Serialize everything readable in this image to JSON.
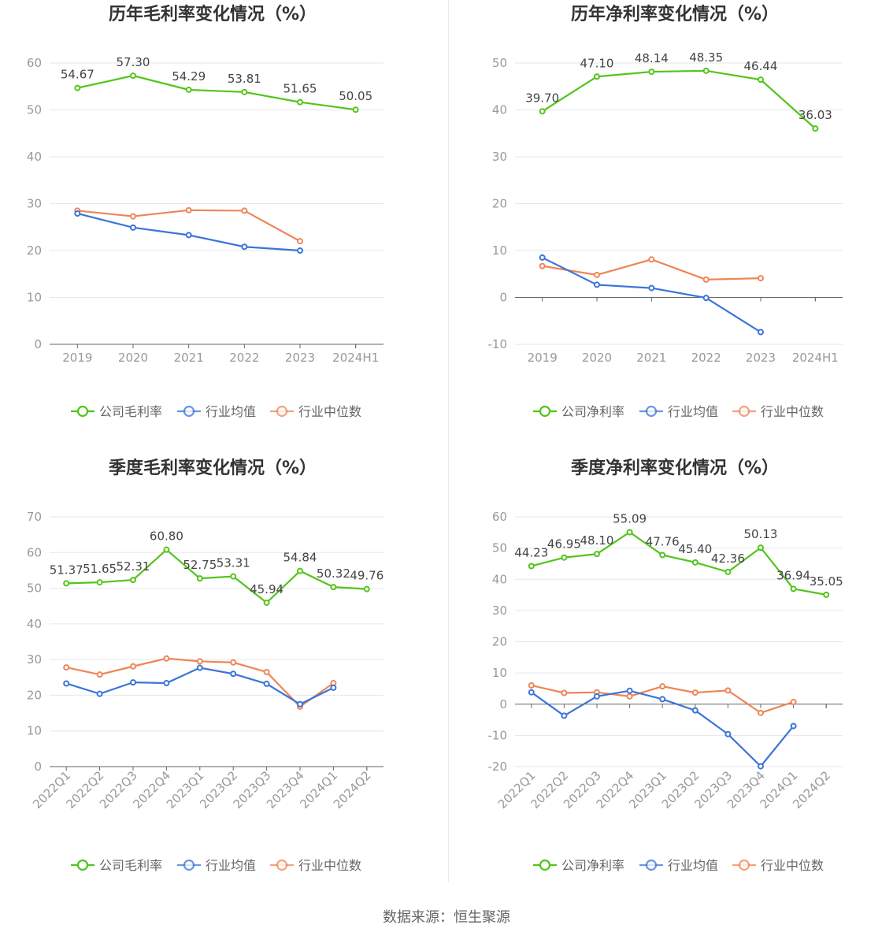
{
  "source_label": "数据来源：恒生聚源",
  "colors": {
    "company": "#52c41a",
    "avg": "#3b74d9",
    "median": "#ee8556",
    "grid": "#e6e6ee",
    "axis": "#666666"
  },
  "chart_data": [
    {
      "type": "line",
      "title": "历年毛利率变化情况（%）",
      "categories": [
        "2019",
        "2020",
        "2021",
        "2022",
        "2023",
        "2024H1"
      ],
      "ylim": [
        0,
        60
      ],
      "yticks": [
        0,
        10,
        20,
        30,
        40,
        50,
        60
      ],
      "grid": true,
      "legend_position": "bottom",
      "rotate_x_labels": false,
      "series": [
        {
          "name": "公司毛利率",
          "key": "company",
          "labels": true,
          "values": [
            54.67,
            57.3,
            54.29,
            53.81,
            51.65,
            50.05
          ]
        },
        {
          "name": "行业均值",
          "key": "avg",
          "labels": false,
          "values": [
            27.9,
            24.9,
            23.3,
            20.8,
            20.0,
            null
          ]
        },
        {
          "name": "行业中位数",
          "key": "median",
          "labels": false,
          "values": [
            28.5,
            27.3,
            28.6,
            28.5,
            22.0,
            null
          ]
        }
      ],
      "label_text": [
        "54.67",
        "57.30",
        "54.29",
        "53.81",
        "51.65",
        "50.05"
      ]
    },
    {
      "type": "line",
      "title": "历年净利率变化情况（%）",
      "categories": [
        "2019",
        "2020",
        "2021",
        "2022",
        "2023",
        "2024H1"
      ],
      "ylim": [
        -10,
        50
      ],
      "yticks": [
        -10,
        0,
        10,
        20,
        30,
        40,
        50
      ],
      "grid": true,
      "legend_position": "bottom",
      "rotate_x_labels": false,
      "series": [
        {
          "name": "公司净利率",
          "key": "company",
          "labels": true,
          "values": [
            39.7,
            47.1,
            48.14,
            48.35,
            46.44,
            36.03
          ]
        },
        {
          "name": "行业均值",
          "key": "avg",
          "labels": false,
          "values": [
            8.5,
            2.7,
            2.0,
            -0.1,
            -7.4,
            null
          ]
        },
        {
          "name": "行业中位数",
          "key": "median",
          "labels": false,
          "values": [
            6.7,
            4.8,
            8.1,
            3.8,
            4.1,
            null
          ]
        }
      ],
      "label_text": [
        "39.70",
        "47.10",
        "48.14",
        "48.35",
        "46.44",
        "36.03"
      ]
    },
    {
      "type": "line",
      "title": "季度毛利率变化情况（%）",
      "categories": [
        "2022Q1",
        "2022Q2",
        "2022Q3",
        "2022Q4",
        "2023Q1",
        "2023Q2",
        "2023Q3",
        "2023Q4",
        "2024Q1",
        "2024Q2"
      ],
      "ylim": [
        0,
        70
      ],
      "yticks": [
        0,
        10,
        20,
        30,
        40,
        50,
        60,
        70
      ],
      "grid": true,
      "legend_position": "bottom",
      "rotate_x_labels": true,
      "series": [
        {
          "name": "公司毛利率",
          "key": "company",
          "labels": true,
          "values": [
            51.37,
            51.65,
            52.31,
            60.8,
            52.75,
            53.31,
            45.94,
            54.84,
            50.32,
            49.76
          ]
        },
        {
          "name": "行业均值",
          "key": "avg",
          "labels": false,
          "values": [
            23.3,
            20.4,
            23.6,
            23.4,
            27.7,
            26.0,
            23.2,
            17.5,
            22.1,
            null
          ]
        },
        {
          "name": "行业中位数",
          "key": "median",
          "labels": false,
          "values": [
            27.8,
            25.8,
            28.1,
            30.3,
            29.5,
            29.2,
            26.5,
            16.8,
            23.4,
            null
          ]
        }
      ],
      "label_text": [
        "51.37",
        "51.65",
        "52.31",
        "60.80",
        "52.75",
        "53.31",
        "45.94",
        "54.84",
        "50.32",
        "49.76"
      ]
    },
    {
      "type": "line",
      "title": "季度净利率变化情况（%）",
      "categories": [
        "2022Q1",
        "2022Q2",
        "2022Q3",
        "2022Q4",
        "2023Q1",
        "2023Q2",
        "2023Q3",
        "2023Q4",
        "2024Q1",
        "2024Q2"
      ],
      "ylim": [
        -20,
        60
      ],
      "yticks": [
        -20,
        -10,
        0,
        10,
        20,
        30,
        40,
        50,
        60
      ],
      "grid": true,
      "legend_position": "bottom",
      "rotate_x_labels": true,
      "series": [
        {
          "name": "公司净利率",
          "key": "company",
          "labels": true,
          "values": [
            44.23,
            46.95,
            48.1,
            55.09,
            47.76,
            45.4,
            42.36,
            50.13,
            36.94,
            35.05
          ]
        },
        {
          "name": "行业均值",
          "key": "avg",
          "labels": false,
          "values": [
            3.8,
            -3.7,
            2.5,
            4.3,
            1.6,
            -2.0,
            -9.6,
            -19.9,
            -7.0,
            null
          ]
        },
        {
          "name": "行业中位数",
          "key": "median",
          "labels": false,
          "values": [
            6.0,
            3.6,
            3.8,
            2.5,
            5.7,
            3.7,
            4.4,
            -2.8,
            0.7,
            null
          ]
        }
      ],
      "label_text": [
        "44.23",
        "46.95",
        "48.10",
        "55.09",
        "47.76",
        "45.40",
        "42.36",
        "50.13",
        "36.94",
        "35.05"
      ]
    }
  ]
}
